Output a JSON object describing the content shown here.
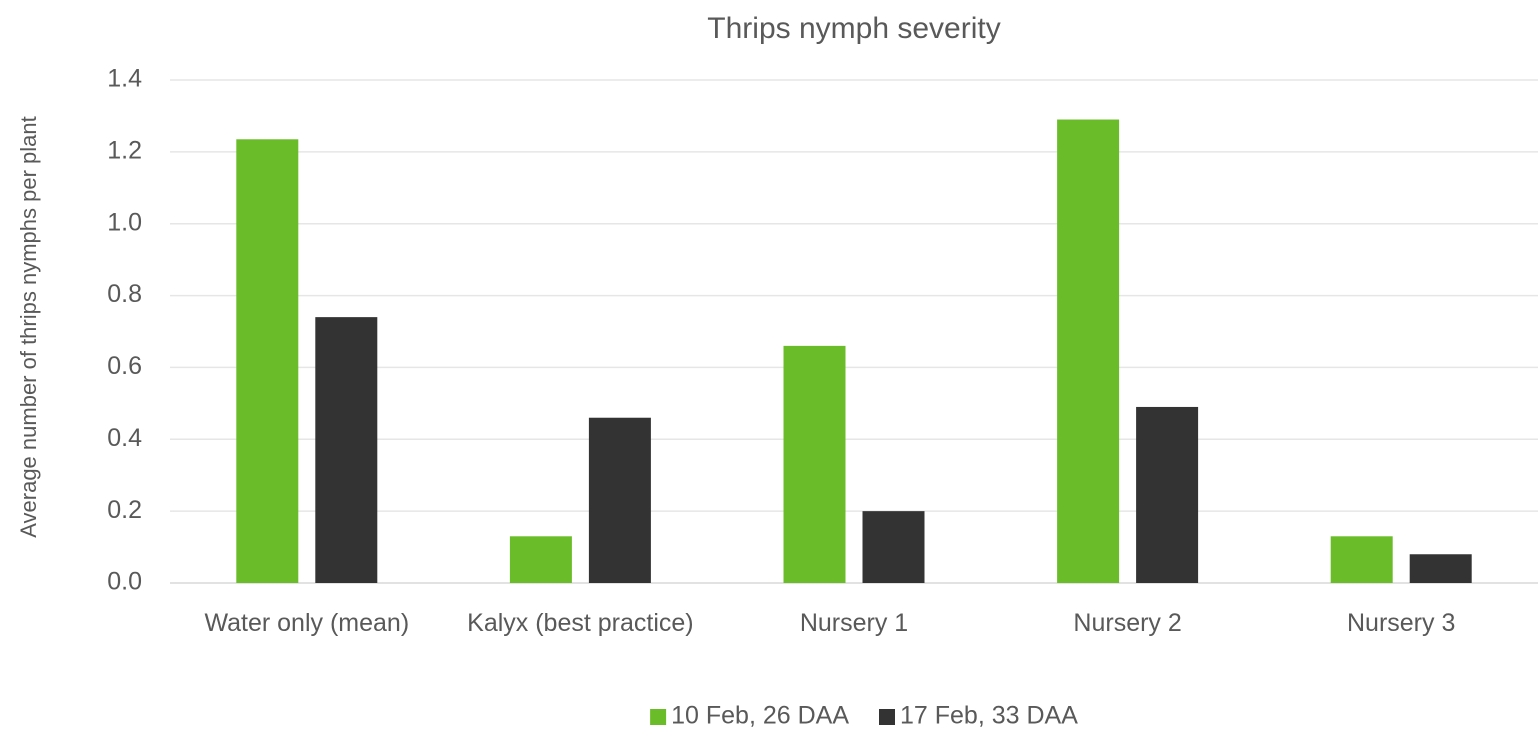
{
  "chart_data": {
    "type": "bar",
    "title": "Thrips nymph severity",
    "y_label": "Average number of thrips nymphs per plant",
    "categories": [
      "Water only (mean)",
      "Kalyx (best practice)",
      "Nursery 1",
      "Nursery 2",
      "Nursery 3"
    ],
    "series": [
      {
        "name": "10 Feb, 26 DAA",
        "color": "#6abd29",
        "values": [
          1.235,
          0.13,
          0.66,
          1.29,
          0.13
        ]
      },
      {
        "name": "17 Feb, 33 DAA",
        "color": "#333333",
        "values": [
          0.74,
          0.46,
          0.2,
          0.49,
          0.08
        ]
      }
    ],
    "ylim": [
      0,
      1.4
    ],
    "yticks": [
      {
        "value": 0,
        "label": "0.0"
      },
      0.2,
      0.4,
      0.6,
      0.8,
      {
        "value": 1,
        "label": "1.0"
      },
      1.2,
      1.4
    ],
    "grid": true,
    "legend": "bottom"
  }
}
